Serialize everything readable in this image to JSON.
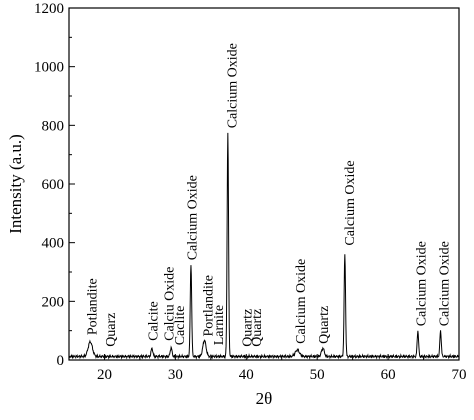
{
  "chart_data": {
    "type": "line",
    "xlabel": "2θ",
    "ylabel": "Intensity (a.u.)",
    "xlim": [
      15,
      70
    ],
    "ylim": [
      0,
      1200
    ],
    "x_ticks": [
      "20",
      "30",
      "40",
      "50",
      "60",
      "70"
    ],
    "y_ticks": [
      "0",
      "200",
      "400",
      "600",
      "800",
      "1000",
      "1200"
    ],
    "grid": false,
    "baseline": 12,
    "peaks": [
      {
        "x": 18.0,
        "y": 50,
        "width": 0.6
      },
      {
        "x": 26.7,
        "y": 28,
        "width": 0.25
      },
      {
        "x": 29.4,
        "y": 30,
        "width": 0.25
      },
      {
        "x": 32.2,
        "y": 316,
        "width": 0.2
      },
      {
        "x": 34.1,
        "y": 55,
        "width": 0.45
      },
      {
        "x": 37.4,
        "y": 760,
        "width": 0.2
      },
      {
        "x": 47.2,
        "y": 22,
        "width": 0.6
      },
      {
        "x": 50.8,
        "y": 28,
        "width": 0.4
      },
      {
        "x": 53.9,
        "y": 348,
        "width": 0.2
      },
      {
        "x": 64.2,
        "y": 88,
        "width": 0.2
      },
      {
        "x": 67.4,
        "y": 88,
        "width": 0.2
      }
    ],
    "annotations": [
      {
        "text": "Potlandite",
        "x": 18.2,
        "y": 85
      },
      {
        "text": "Quarz",
        "x": 20.8,
        "y": 45
      },
      {
        "text": "Calcite",
        "x": 26.8,
        "y": 65
      },
      {
        "text": "Calciu Oxide",
        "x": 29.0,
        "y": 65
      },
      {
        "text": "Caclite",
        "x": 30.5,
        "y": 50
      },
      {
        "text": "Calcium Oxide",
        "x": 32.3,
        "y": 340
      },
      {
        "text": "Portlandite",
        "x": 34.5,
        "y": 80
      },
      {
        "text": "Larnite",
        "x": 36.0,
        "y": 50
      },
      {
        "text": "Quartz",
        "x": 40.0,
        "y": 45
      },
      {
        "text": "Quartz",
        "x": 41.4,
        "y": 45
      },
      {
        "text": "Calcium Oxide",
        "x": 47.6,
        "y": 55
      },
      {
        "text": "Quartz",
        "x": 50.8,
        "y": 55
      },
      {
        "text": "Calcium Oxide",
        "x": 54.5,
        "y": 390
      },
      {
        "text": "Calcium Oxide",
        "x": 64.6,
        "y": 115
      },
      {
        "text": "Calcium Oxide",
        "x": 67.8,
        "y": 115
      },
      {
        "text": "Calcium Oxide",
        "x": 37.9,
        "y": 790
      }
    ]
  }
}
